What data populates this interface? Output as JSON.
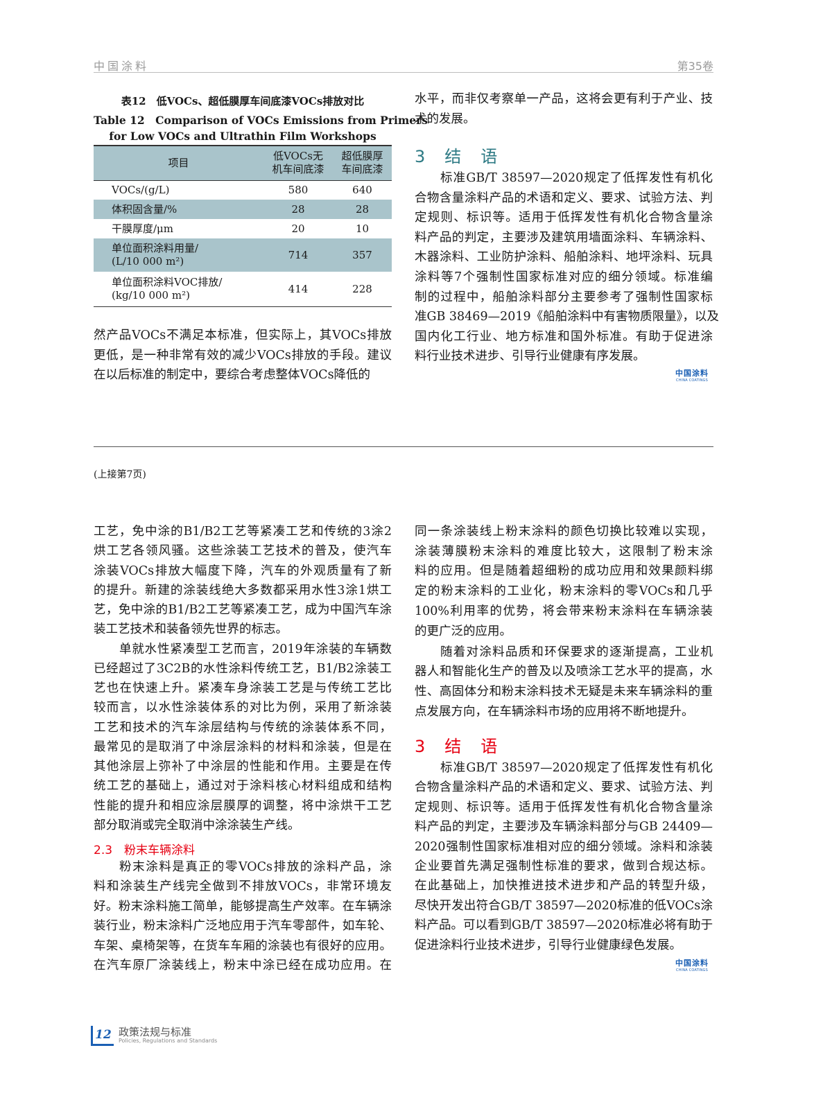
{
  "header": {
    "journal": "中国涂料",
    "volume": "第35卷"
  },
  "table12": {
    "caption_cn": "表12　低VOCs、超低膜厚车间底漆VOCs排放对比",
    "caption_en_1": "Table 12　Comparison of VOCs Emissions from Primers",
    "caption_en_2": "for Low VOCs and Ultrathin Film Workshops",
    "headers": [
      "项目",
      "低VOCs无\n机车间底漆",
      "超低膜厚\n车间底漆"
    ],
    "header_lines": [
      [
        "低VOCs无",
        "机车间底漆"
      ],
      [
        "超低膜厚",
        "车间底漆"
      ]
    ],
    "rows": [
      {
        "item": [
          "VOCs/(g/L)"
        ],
        "low_voc": "580",
        "ultrathin": "640"
      },
      {
        "item": [
          "体积固含量/%"
        ],
        "low_voc": "28",
        "ultrathin": "28"
      },
      {
        "item": [
          "干膜厚度/μm"
        ],
        "low_voc": "20",
        "ultrathin": "10"
      },
      {
        "item": [
          "单位面积涂料用量/",
          "(L/10 000 m²)"
        ],
        "low_voc": "714",
        "ultrathin": "357"
      },
      {
        "item": [
          "单位面积涂料VOC排放/",
          "(kg/10 000 m²)"
        ],
        "low_voc": "414",
        "ultrathin": "228"
      }
    ]
  },
  "top_left": {
    "paragraphs": [
      {
        "indent": false,
        "ends": true,
        "lines": [
          "然产品VOCs不满足本标准，但实际上，其VOCs排放",
          "更低，是一种非常有效的减少VOCs排放的手段。建议",
          "在以后标准的制定中，要综合考虑整体VOCs降低的"
        ]
      }
    ]
  },
  "top_right": {
    "paragraphs": [
      {
        "indent": false,
        "ends": true,
        "lines": [
          "水平，而非仅考察单一产品，这将会更有利于产业、技",
          "术的发展。"
        ]
      }
    ],
    "heading": "3　结　语",
    "paragraphs2": [
      {
        "indent": true,
        "ends": true,
        "lines": [
          "标准GB/T 38597—2020规定了低挥发性有机化",
          "合物含量涂料产品的术语和定义、要求、试验方法、判",
          "定规则、标识等。适用于低挥发性有机化合物含量涂",
          "料产品的判定，主要涉及建筑用墙面涂料、车辆涂料、",
          "木器涂料、工业防护涂料、船舶涂料、地坪涂料、玩具",
          "涂料等7个强制性国家标准对应的细分领域。标准编",
          "制的过程中，船舶涂料部分主要参考了强制性国家标",
          "准GB 38469—2019《船舶涂料中有害物质限量》，以及",
          "国内化工行业、地方标准和国外标准。有助于促进涂",
          "料行业技术进步、引导行业健康有序发展。"
        ]
      }
    ]
  },
  "logo": {
    "cn": "中国涂料",
    "en": "CHINA COATINGS"
  },
  "continued_from": "(上接第7页)",
  "bottom_left": {
    "paragraphs": [
      {
        "indent": false,
        "ends": true,
        "lines": [
          "工艺，免中涂的B1/B2工艺等紧凑工艺和传统的3涂2",
          "烘工艺各领风骚。这些涂装工艺技术的普及，使汽车",
          "涂装VOCs排放大幅度下降，汽车的外观质量有了新",
          "的提升。新建的涂装线绝大多数都采用水性3涂1烘工",
          "艺，免中涂的B1/B2工艺等紧凑工艺，成为中国汽车涂",
          "装工艺技术和装备领先世界的标志。"
        ]
      },
      {
        "indent": true,
        "ends": true,
        "lines": [
          "单就水性紧凑型工艺而言，2019年涂装的车辆数",
          "已经超过了3C2B的水性涂料传统工艺，B1/B2涂装工",
          "艺也在快速上升。紧凑车身涂装工艺是与传统工艺比",
          "较而言，以水性涂装体系的对比为例，采用了新涂装",
          "工艺和技术的汽车涂层结构与传统的涂装体系不同，",
          "最常见的是取消了中涂层涂料的材料和涂装，但是在",
          "其他涂层上弥补了中涂层的性能和作用。主要是在传",
          "统工艺的基础上，通过对于涂料核心材料组成和结构",
          "性能的提升和相应涂层膜厚的调整，将中涂烘干工艺",
          "部分取消或完全取消中涂涂装生产线。"
        ]
      }
    ],
    "heading": "2.3　粉末车辆涂料",
    "paragraphs2": [
      {
        "indent": true,
        "ends": false,
        "lines": [
          "粉末涂料是真正的零VOCs排放的涂料产品，涂",
          "料和涂装生产线完全做到不排放VOCs，非常环境友",
          "好。粉末涂料施工简单，能够提高生产效率。在车辆涂",
          "装行业，粉末涂料广泛地应用于汽车零部件，如车轮、",
          "车架、桌椅架等，在货车车厢的涂装也有很好的应用。",
          "在汽车原厂涂装线上，粉末中涂已经在成功应用。在"
        ]
      }
    ]
  },
  "bottom_right": {
    "paragraphs": [
      {
        "indent": false,
        "ends": true,
        "lines": [
          "同一条涂装线上粉末涂料的颜色切换比较难以实现，",
          "涂装薄膜粉末涂料的难度比较大，这限制了粉末涂",
          "料的应用。但是随着超细粉的成功应用和效果颜料绑",
          "定的粉末涂料的工业化，粉末涂料的零VOCs和几乎",
          "100%利用率的优势，将会带来粉末涂料在车辆涂装",
          "的更广泛的应用。"
        ]
      },
      {
        "indent": true,
        "ends": true,
        "lines": [
          "随着对涂料品质和环保要求的逐渐提高，工业机",
          "器人和智能化生产的普及以及喷涂工艺水平的提高，水",
          "性、高固体分和粉末涂料技术无疑是未来车辆涂料的重",
          "点发展方向，在车辆涂料市场的应用将不断地提升。"
        ]
      }
    ],
    "heading": "3　结　语",
    "paragraphs2": [
      {
        "indent": true,
        "ends": true,
        "lines": [
          "标准GB/T 38597—2020规定了低挥发性有机化",
          "合物含量涂料产品的术语和定义、要求、试验方法、判",
          "定规则、标识等。适用于低挥发性有机化合物含量涂",
          "料产品的判定，主要涉及车辆涂料部分与GB 24409—",
          "2020强制性国家标准相对应的细分领域。涂料和涂装",
          "企业要首先满足强制性标准的要求，做到合规达标。",
          "在此基础上，加快推进技术进步和产品的转型升级，",
          "尽快开发出符合GB/T 38597—2020标准的低VOCs涂",
          "料产品。可以看到GB/T 38597—2020标准必将有助于",
          "促进涂料行业技术进步，引导行业健康绿色发展。"
        ]
      }
    ]
  },
  "footer": {
    "page_number": "12",
    "section_cn": "政策法规与标准",
    "section_en": "Policies, Regulations and Standards"
  },
  "colors": {
    "teal_heading": "#2d7a84",
    "red_heading": "#e60012",
    "table_shade": "#a9c4cb",
    "brand_blue": "#1a5fb4"
  }
}
